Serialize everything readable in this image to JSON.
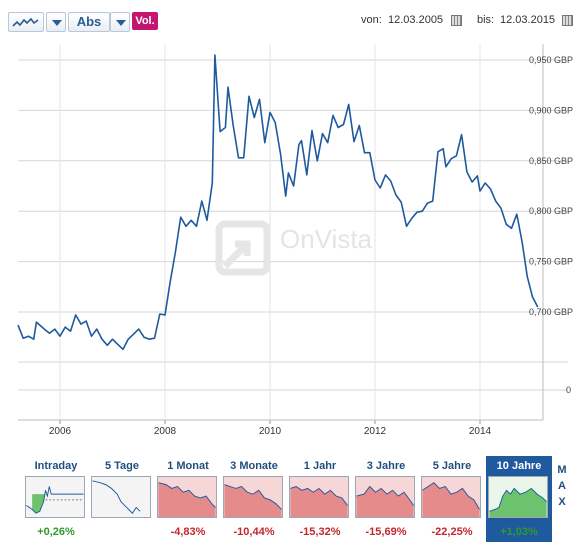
{
  "toolbar": {
    "chart_type_icon": "line-chart-icon",
    "scale_label": "Abs",
    "volume_label": "Vol."
  },
  "range": {
    "from_label": "von:",
    "from_value": "12.03.2005",
    "to_label": "bis:",
    "to_value": "12.03.2015",
    "calendar_icon": "calendar-icon"
  },
  "watermark": "OnVista",
  "timeframes": {
    "items": [
      {
        "label": "Intraday",
        "change": "+0,26%",
        "direction": "up"
      },
      {
        "label": "5 Tage",
        "change": "",
        "direction": "flat"
      },
      {
        "label": "1 Monat",
        "change": "-4,83%",
        "direction": "down"
      },
      {
        "label": "3 Monate",
        "change": "-10,44%",
        "direction": "down"
      },
      {
        "label": "1 Jahr",
        "change": "-15,32%",
        "direction": "down"
      },
      {
        "label": "3 Jahre",
        "change": "-15,69%",
        "direction": "down"
      },
      {
        "label": "5 Jahre",
        "change": "-22,25%",
        "direction": "down"
      },
      {
        "label": "10 Jahre",
        "change": "+1,03%",
        "direction": "up",
        "active": true
      }
    ],
    "max_label": [
      "M",
      "A",
      "X"
    ]
  },
  "colors": {
    "line": "#1f5a9e",
    "up": "#2e9a2e",
    "down": "#c0282d",
    "down_fill": "#e58b8b",
    "up_fill": "#6dc36d",
    "vol": "#c4166f"
  },
  "chart_data": {
    "type": "line",
    "title": "",
    "xlabel": "",
    "ylabel": "",
    "ylim": [
      0.6,
      0.96
    ],
    "xlim": [
      2005.2,
      2015.2
    ],
    "x_ticks": [
      "2006",
      "2008",
      "2010",
      "2012",
      "2014"
    ],
    "y_ticks": [
      "0,950 GBP",
      "0,900 GBP",
      "0,850 GBP",
      "0,800 GBP",
      "0,750 GBP",
      "0,700 GBP"
    ],
    "y_ticks_values": [
      0.95,
      0.9,
      0.85,
      0.8,
      0.75,
      0.7
    ],
    "extra_y_label": "0",
    "series": [
      {
        "name": "",
        "points": [
          [
            2005.2,
            0.687
          ],
          [
            2005.3,
            0.674
          ],
          [
            2005.4,
            0.676
          ],
          [
            2005.5,
            0.673
          ],
          [
            2005.55,
            0.69
          ],
          [
            2005.7,
            0.683
          ],
          [
            2005.8,
            0.679
          ],
          [
            2005.9,
            0.683
          ],
          [
            2006.0,
            0.676
          ],
          [
            2006.1,
            0.685
          ],
          [
            2006.2,
            0.681
          ],
          [
            2006.3,
            0.697
          ],
          [
            2006.4,
            0.688
          ],
          [
            2006.5,
            0.691
          ],
          [
            2006.6,
            0.676
          ],
          [
            2006.7,
            0.683
          ],
          [
            2006.8,
            0.673
          ],
          [
            2006.9,
            0.667
          ],
          [
            2007.0,
            0.673
          ],
          [
            2007.1,
            0.668
          ],
          [
            2007.2,
            0.663
          ],
          [
            2007.3,
            0.673
          ],
          [
            2007.4,
            0.678
          ],
          [
            2007.5,
            0.683
          ],
          [
            2007.6,
            0.675
          ],
          [
            2007.7,
            0.673
          ],
          [
            2007.8,
            0.674
          ],
          [
            2007.9,
            0.698
          ],
          [
            2008.0,
            0.697
          ],
          [
            2008.1,
            0.73
          ],
          [
            2008.2,
            0.76
          ],
          [
            2008.3,
            0.794
          ],
          [
            2008.4,
            0.785
          ],
          [
            2008.5,
            0.791
          ],
          [
            2008.6,
            0.785
          ],
          [
            2008.7,
            0.81
          ],
          [
            2008.8,
            0.791
          ],
          [
            2008.9,
            0.828
          ],
          [
            2008.95,
            0.955
          ],
          [
            2009.05,
            0.879
          ],
          [
            2009.15,
            0.883
          ],
          [
            2009.2,
            0.923
          ],
          [
            2009.3,
            0.885
          ],
          [
            2009.4,
            0.853
          ],
          [
            2009.5,
            0.853
          ],
          [
            2009.6,
            0.914
          ],
          [
            2009.7,
            0.893
          ],
          [
            2009.8,
            0.911
          ],
          [
            2009.9,
            0.868
          ],
          [
            2010.0,
            0.898
          ],
          [
            2010.1,
            0.888
          ],
          [
            2010.2,
            0.857
          ],
          [
            2010.3,
            0.815
          ],
          [
            2010.35,
            0.838
          ],
          [
            2010.45,
            0.825
          ],
          [
            2010.55,
            0.866
          ],
          [
            2010.6,
            0.87
          ],
          [
            2010.7,
            0.836
          ],
          [
            2010.8,
            0.88
          ],
          [
            2010.9,
            0.85
          ],
          [
            2011.0,
            0.877
          ],
          [
            2011.1,
            0.868
          ],
          [
            2011.2,
            0.895
          ],
          [
            2011.3,
            0.883
          ],
          [
            2011.4,
            0.886
          ],
          [
            2011.5,
            0.906
          ],
          [
            2011.6,
            0.869
          ],
          [
            2011.7,
            0.885
          ],
          [
            2011.8,
            0.858
          ],
          [
            2011.9,
            0.858
          ],
          [
            2012.0,
            0.831
          ],
          [
            2012.1,
            0.823
          ],
          [
            2012.2,
            0.836
          ],
          [
            2012.3,
            0.83
          ],
          [
            2012.4,
            0.816
          ],
          [
            2012.5,
            0.809
          ],
          [
            2012.6,
            0.785
          ],
          [
            2012.7,
            0.793
          ],
          [
            2012.8,
            0.799
          ],
          [
            2012.9,
            0.8
          ],
          [
            2013.0,
            0.808
          ],
          [
            2013.1,
            0.81
          ],
          [
            2013.2,
            0.859
          ],
          [
            2013.3,
            0.862
          ],
          [
            2013.35,
            0.844
          ],
          [
            2013.45,
            0.852
          ],
          [
            2013.55,
            0.855
          ],
          [
            2013.65,
            0.876
          ],
          [
            2013.75,
            0.839
          ],
          [
            2013.85,
            0.829
          ],
          [
            2013.95,
            0.835
          ],
          [
            2014.0,
            0.82
          ],
          [
            2014.1,
            0.828
          ],
          [
            2014.2,
            0.822
          ],
          [
            2014.3,
            0.81
          ],
          [
            2014.4,
            0.803
          ],
          [
            2014.5,
            0.787
          ],
          [
            2014.6,
            0.783
          ],
          [
            2014.7,
            0.797
          ],
          [
            2014.8,
            0.77
          ],
          [
            2014.9,
            0.735
          ],
          [
            2015.0,
            0.715
          ],
          [
            2015.1,
            0.705
          ]
        ]
      }
    ],
    "grid": true,
    "legend": "none"
  }
}
